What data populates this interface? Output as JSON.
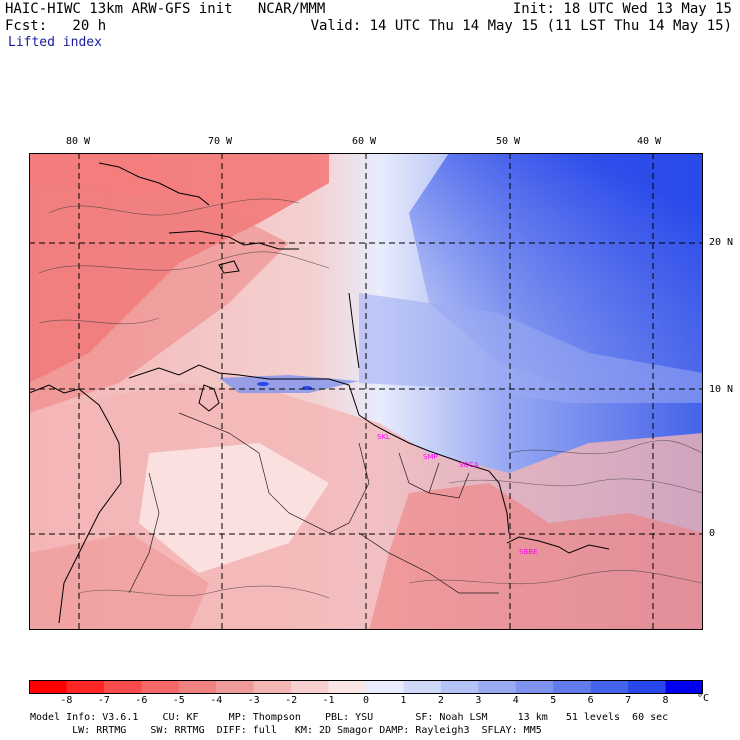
{
  "header": {
    "title": "HAIC-HIWC 13km ARW-GFS init   NCAR/MMM",
    "init": "Init: 18 UTC Wed 13 May 15",
    "fcst": "Fcst:   20 h",
    "valid": "Valid: 14 UTC Thu 14 May 15 (11 LST Thu 14 May 15)",
    "field": "Lifted index"
  },
  "map": {
    "lon_labels": [
      "80 W",
      "70 W",
      "60 W",
      "50 W",
      "40 W"
    ],
    "lat_labels": [
      "20 N",
      "10 N",
      "0"
    ],
    "stations": [
      "SKL",
      "SMP",
      "SOCA",
      "SBBE"
    ],
    "station_color": "#ff00ff"
  },
  "colorbar": {
    "ticks": [
      "-8",
      "-7",
      "-6",
      "-5",
      "-4",
      "-3",
      "-2",
      "-1",
      "0",
      "1",
      "2",
      "3",
      "4",
      "5",
      "6",
      "7",
      "8"
    ],
    "unit": "°C",
    "colors": [
      "#ff0000",
      "#ff2626",
      "#f94b4b",
      "#f46868",
      "#ef8181",
      "#f09b9b",
      "#f4b5b5",
      "#f8cfcf",
      "#fbe6e6",
      "#e8ecfc",
      "#d0d9fa",
      "#b5c2f6",
      "#9aaaf2",
      "#7e93ee",
      "#627ceb",
      "#4463ea",
      "#2747ea",
      "#0000ee"
    ]
  },
  "footer": {
    "line1": "Model Info: V3.6.1    CU: KF     MP: Thompson    PBL: YSU       SF: Noah LSM     13 km   51 levels  60 sec",
    "line2": "       LW: RRTMG    SW: RRTMG  DIFF: full   KM: 2D Smagor DAMP: Rayleigh3  SFLAY: MM5"
  }
}
